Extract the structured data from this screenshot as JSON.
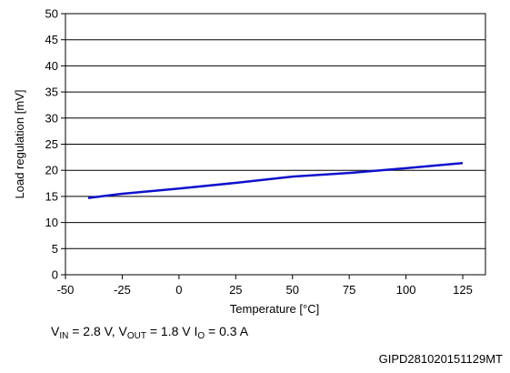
{
  "chart_data": {
    "type": "line",
    "title": "",
    "xlabel": "Temperature [°C]",
    "ylabel": "Load regulation [mV]",
    "xlim": [
      -50,
      135
    ],
    "ylim": [
      0,
      50
    ],
    "x_ticks": [
      "-50",
      "-25",
      "0",
      "25",
      "50",
      "75",
      "100",
      "125"
    ],
    "y_ticks": [
      "0",
      "5",
      "10",
      "15",
      "20",
      "25",
      "30",
      "35",
      "40",
      "45",
      "50"
    ],
    "grid": "horizontal",
    "series": [
      {
        "color": "#1010cc",
        "x": [
          -40,
          -25,
          0,
          25,
          50,
          75,
          100,
          125
        ],
        "y": [
          14.7,
          15.5,
          16.5,
          17.6,
          18.8,
          19.5,
          20.4,
          21.4
        ]
      }
    ]
  },
  "conditions": {
    "v_in_label": "V",
    "v_in_sub": "IN",
    "v_in_value": " = 2.8 V, ",
    "v_out_label": "V",
    "v_out_sub": "OUT",
    "v_out_value": " = 1.8 V ",
    "i_o_label": "I",
    "i_o_sub": "O",
    "i_o_value": " = 0.3 A"
  },
  "footnote": "GIPD281020151129MT"
}
